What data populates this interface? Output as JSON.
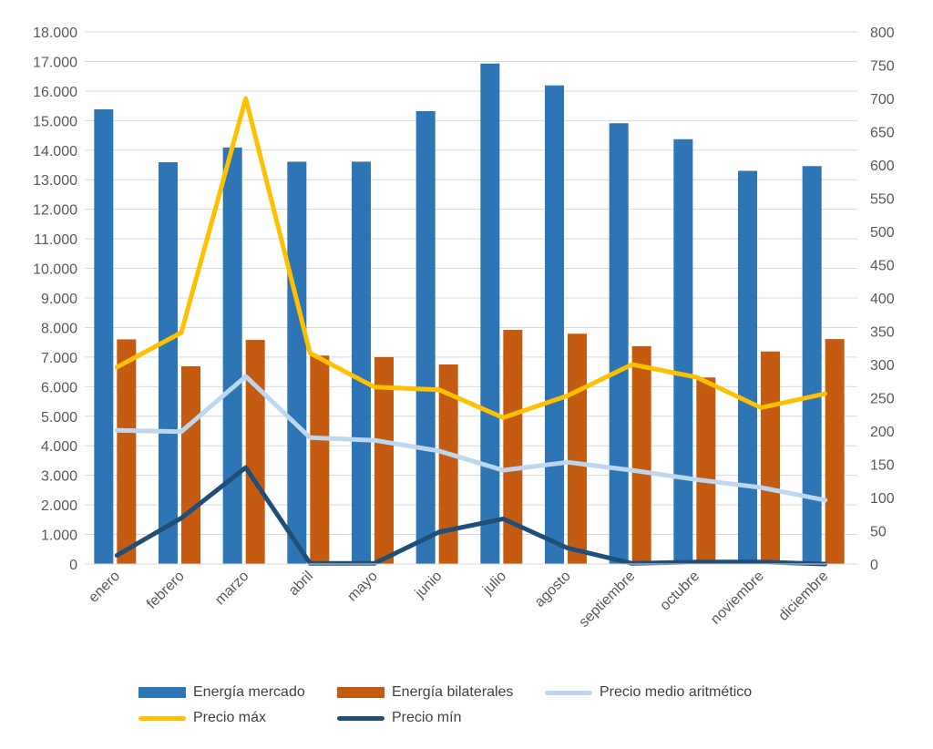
{
  "chart_data": {
    "type": "bar",
    "categories": [
      "enero",
      "febrero",
      "marzo",
      "abril",
      "mayo",
      "junio",
      "julio",
      "agosto",
      "septiembre",
      "octubre",
      "noviembre",
      "diciembre"
    ],
    "series": [
      {
        "name": "Energía mercado",
        "type": "bar",
        "axis": "left",
        "color": "#2E75B6",
        "values": [
          15380,
          13590,
          14090,
          13610,
          13610,
          15320,
          16930,
          16190,
          14910,
          14370,
          13300,
          13460
        ]
      },
      {
        "name": "Energía bilaterales",
        "type": "bar",
        "axis": "left",
        "color": "#C55A11",
        "values": [
          7600,
          6690,
          7580,
          7050,
          7000,
          6750,
          7920,
          7790,
          7370,
          6310,
          7190,
          7610
        ]
      },
      {
        "name": "Precio medio aritmético",
        "type": "line",
        "axis": "right",
        "color": "#BDD7EE",
        "values": [
          201,
          199,
          282,
          190,
          186,
          170,
          141,
          153,
          141,
          127,
          115,
          96
        ]
      },
      {
        "name": "Precio máx",
        "type": "line",
        "axis": "right",
        "color": "#FFC000",
        "values": [
          296,
          348,
          700,
          317,
          266,
          262,
          220,
          253,
          300,
          281,
          235,
          256
        ]
      },
      {
        "name": "Precio mín",
        "type": "line",
        "axis": "right",
        "color": "#1F4E79",
        "values": [
          13,
          69,
          145,
          1,
          1,
          48,
          68,
          24,
          1,
          3,
          3,
          0
        ]
      }
    ],
    "y_left": {
      "min": 0,
      "max": 18000,
      "step": 1000,
      "tick_labels": [
        "0",
        "1.000",
        "2.000",
        "3.000",
        "4.000",
        "5.000",
        "6.000",
        "7.000",
        "8.000",
        "9.000",
        "10.000",
        "11.000",
        "12.000",
        "13.000",
        "14.000",
        "15.000",
        "16.000",
        "17.000",
        "18.000"
      ]
    },
    "y_right": {
      "min": 0,
      "max": 800,
      "step": 50,
      "tick_labels": [
        "0",
        "50",
        "100",
        "150",
        "200",
        "250",
        "300",
        "350",
        "400",
        "450",
        "500",
        "550",
        "600",
        "650",
        "700",
        "750",
        "800"
      ]
    },
    "grid": true,
    "legend_position": "bottom"
  }
}
